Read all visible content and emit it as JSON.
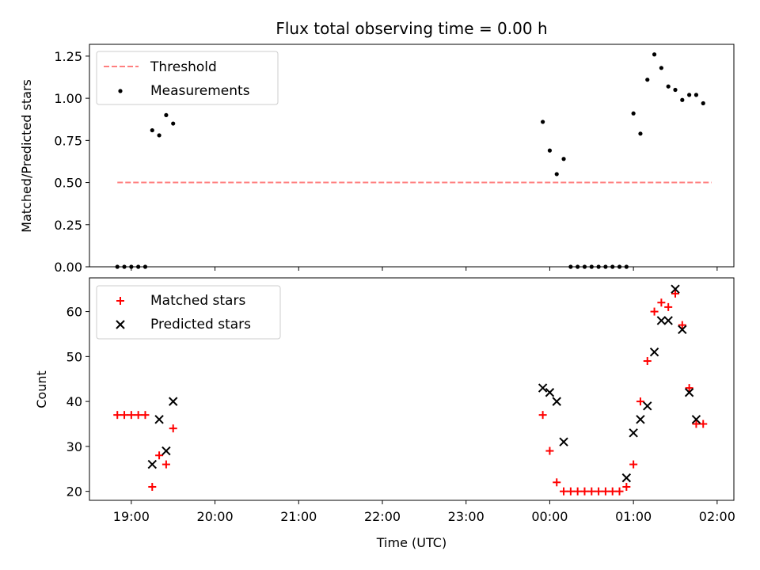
{
  "chart_data": [
    {
      "type": "scatter",
      "title": "Flux total observing time = 0.00 h",
      "xlabel": "",
      "ylabel": "Matched/Predicted stars",
      "xlim": [
        "18:30",
        "02:12"
      ],
      "ylim": [
        0,
        1.32
      ],
      "yticks": [
        "0.00",
        "0.25",
        "0.50",
        "0.75",
        "1.00",
        "1.25"
      ],
      "xticks": [
        "19:00",
        "20:00",
        "21:00",
        "22:00",
        "23:00",
        "00:00",
        "01:00",
        "02:00"
      ],
      "show_xticklabels": false,
      "legend_position": "upper-left",
      "series": [
        {
          "name": "Threshold",
          "style": "dashed-line",
          "color": "#ff7f7f",
          "x": [
            "18:50",
            "01:56"
          ],
          "y": [
            0.5,
            0.5
          ]
        },
        {
          "name": "Measurements",
          "style": "dot",
          "color": "#000000",
          "x": [
            "18:50",
            "18:55",
            "19:00",
            "19:05",
            "19:10",
            "19:15",
            "19:20",
            "19:25",
            "19:30",
            "23:55",
            "00:00",
            "00:05",
            "00:10",
            "00:15",
            "00:20",
            "00:25",
            "00:30",
            "00:35",
            "00:40",
            "00:45",
            "00:50",
            "00:55",
            "01:00",
            "01:05",
            "01:10",
            "01:15",
            "01:20",
            "01:25",
            "01:30",
            "01:35",
            "01:40",
            "01:45",
            "01:50"
          ],
          "y": [
            0,
            0,
            0,
            0,
            0,
            0.81,
            0.78,
            0.9,
            0.85,
            0.86,
            0.69,
            0.55,
            0.64,
            0,
            0,
            0,
            0,
            0,
            0,
            0,
            0,
            0,
            0.91,
            0.79,
            1.11,
            1.26,
            1.18,
            1.07,
            1.05,
            0.99,
            1.02,
            1.02,
            0.97
          ]
        }
      ]
    },
    {
      "type": "scatter",
      "title": "",
      "xlabel": "Time (UTC)",
      "ylabel": "Count",
      "xlim": [
        "18:30",
        "02:12"
      ],
      "ylim": [
        18,
        67.5
      ],
      "yticks": [
        "20",
        "30",
        "40",
        "50",
        "60"
      ],
      "xticks": [
        "19:00",
        "20:00",
        "21:00",
        "22:00",
        "23:00",
        "00:00",
        "01:00",
        "02:00"
      ],
      "legend_position": "upper-left",
      "series": [
        {
          "name": "Matched stars",
          "marker": "+",
          "color": "#ff0000",
          "x": [
            "18:50",
            "18:55",
            "19:00",
            "19:05",
            "19:10",
            "19:15",
            "19:20",
            "19:25",
            "19:30",
            "23:55",
            "00:00",
            "00:05",
            "00:10",
            "00:15",
            "00:20",
            "00:25",
            "00:30",
            "00:35",
            "00:40",
            "00:45",
            "00:50",
            "00:55",
            "01:00",
            "01:05",
            "01:10",
            "01:15",
            "01:20",
            "01:25",
            "01:30",
            "01:35",
            "01:40",
            "01:45",
            "01:50"
          ],
          "y": [
            37,
            37,
            37,
            37,
            37,
            21,
            28,
            26,
            34,
            37,
            29,
            22,
            20,
            20,
            20,
            20,
            20,
            20,
            20,
            20,
            20,
            21,
            26,
            40,
            49,
            60,
            62,
            61,
            64,
            57,
            43,
            35,
            35
          ]
        },
        {
          "name": "Predicted stars",
          "marker": "x",
          "color": "#000000",
          "x": [
            "19:15",
            "19:20",
            "19:25",
            "19:30",
            "23:55",
            "00:00",
            "00:05",
            "00:10",
            "00:55",
            "01:00",
            "01:05",
            "01:10",
            "01:15",
            "01:20",
            "01:25",
            "01:30",
            "01:35",
            "01:40",
            "01:45"
          ],
          "y": [
            26,
            36,
            29,
            40,
            43,
            42,
            40,
            31,
            23,
            33,
            36,
            39,
            51,
            58,
            58,
            65,
            56,
            42,
            36
          ]
        }
      ]
    }
  ]
}
